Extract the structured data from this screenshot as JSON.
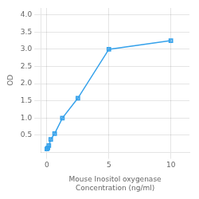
{
  "chart_data": {
    "type": "line",
    "x": [
      0.0,
      0.078,
      0.156,
      0.313,
      0.625,
      1.25,
      2.5,
      5.0,
      10.0
    ],
    "values": [
      0.105,
      0.13,
      0.2,
      0.38,
      0.55,
      1.0,
      1.58,
      3.0,
      3.25
    ],
    "xlabel": [
      "Mouse Inositol oxygenase",
      "Concentration (ng/ml)"
    ],
    "ylabel": "OD",
    "xlim": [
      -0.5,
      11.5
    ],
    "ylim": [
      0,
      4.2
    ],
    "xticks": [
      0,
      5,
      10
    ],
    "yticks": [
      0.5,
      {
        "value": 1.0,
        "label": "1.0"
      },
      1.5,
      {
        "value": 2.0,
        "label": "2.0"
      },
      2.5,
      {
        "value": 3.0,
        "label": "3.0"
      },
      3.5,
      {
        "value": 4.0,
        "label": "4.0"
      }
    ],
    "marker": "square",
    "grid": true
  }
}
